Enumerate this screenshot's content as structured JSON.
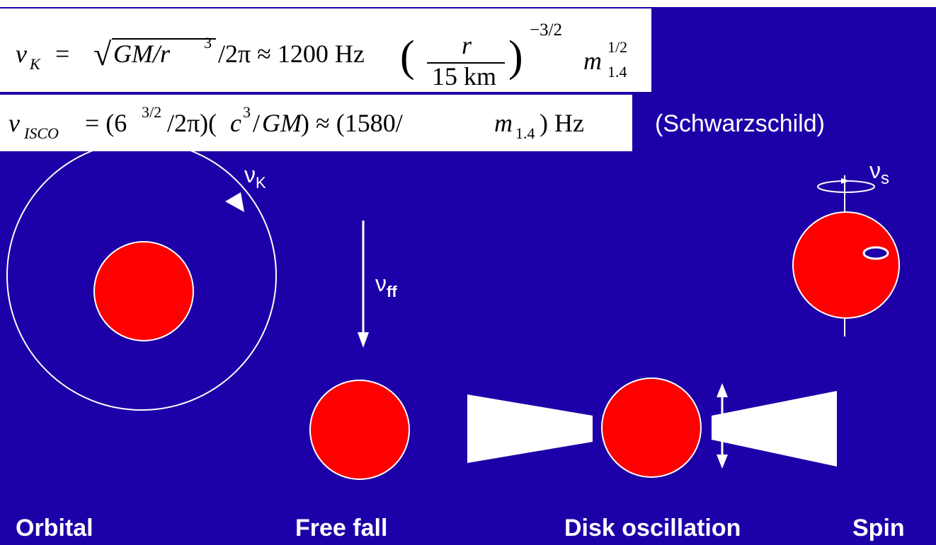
{
  "formula_kepler": [
    "ν",
    "K",
    "=",
    "√",
    "GM/r",
    "3",
    "/2π ≈ 1200 Hz",
    "(",
    "r",
    "15 km",
    ")",
    "−3/2",
    "m",
    "1/2",
    "1.4"
  ],
  "formula_isco": [
    "ν",
    "ISCO",
    "= (6",
    "3/2",
    "/2π)(",
    "c",
    "3",
    "/",
    "GM",
    ") ≈ (1580/",
    "m",
    "1.4",
    ") Hz"
  ],
  "note": "(Schwarzschild)",
  "symbols": {
    "orbital": [
      "ν",
      "K"
    ],
    "free_fall": [
      "ν",
      "ff"
    ],
    "spin": [
      "ν",
      "s"
    ]
  },
  "labels": [
    "Orbital",
    "Free fall",
    "Disk oscillation",
    "Spin"
  ]
}
